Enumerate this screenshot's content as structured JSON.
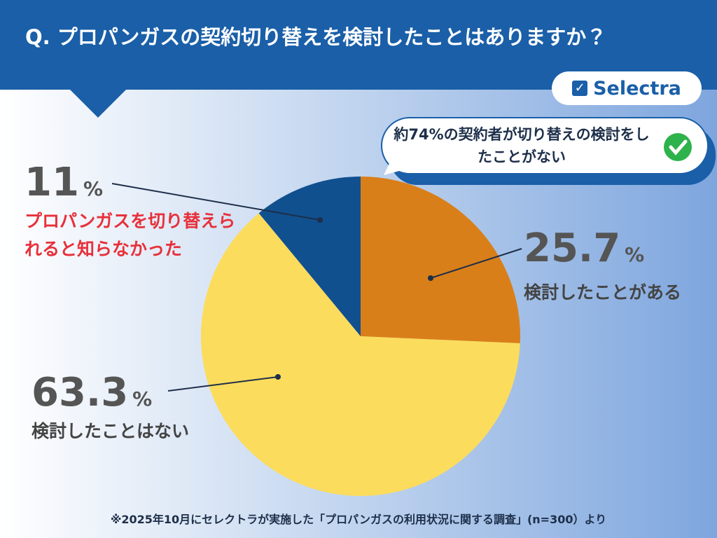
{
  "title": "Q. プロパンガスの契約切り替えを検討したことはありますか？",
  "brand": "Selectra",
  "callout": "約74%の契約者が切り替えの検討をしたことがない",
  "footnote": "※2025年10月にセレクトラが実施した「プロパンガスの利用状況に関する調査」(n=300）より",
  "chart_data": {
    "type": "pie",
    "categories": [
      "検討したことがある",
      "検討したことはない",
      "プロパンガスを切り替えられると知らなかった"
    ],
    "values": [
      25.7,
      63.3,
      11
    ],
    "value_labels": [
      "25.7%",
      "63.3%",
      "11%"
    ],
    "colors": [
      "#d97f1a",
      "#fcdc5c",
      "#11508f"
    ]
  }
}
